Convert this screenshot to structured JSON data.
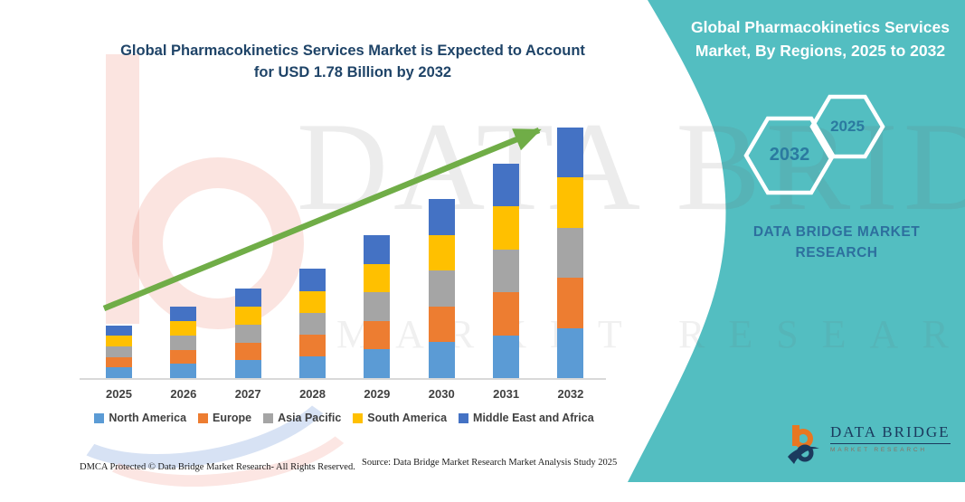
{
  "header": {
    "left_title_lines": [
      "Global Pharmacokinetics Services Market is Expected to Account",
      "for USD 1.78 Billion by 2032"
    ],
    "right_title_lines": [
      "Global Pharmacokinetics Services",
      "Market, By Regions, 2025 to 2032"
    ]
  },
  "side_panel": {
    "hexagon_back_label": "2032",
    "hexagon_front_label": "2025",
    "brand_caption_lines": [
      "DATA BRIDGE MARKET",
      "RESEARCH"
    ],
    "logo": {
      "name": "DATA BRIDGE",
      "tagline": "MARKET RESEARCH"
    }
  },
  "watermark": {
    "big_text": "DATA BRIDGE",
    "small_text": "MARKET RESEARCH"
  },
  "footer": {
    "dmca": "DMCA Protected © Data Bridge Market Research-  All Rights Reserved.",
    "source": "Source: Data Bridge Market Research  Market Analysis Study 2025"
  },
  "colors": {
    "teal_panel": "#53BEC1",
    "title_blue": "#1F4468",
    "hexagon_year_text": "#2B7AA0",
    "brand_caption_text": "#2D6F9E",
    "arrow_green": "#70AD47",
    "axis_text": "#404040",
    "logo_navy": "#1B3A5E",
    "logo_orange": "#E87722"
  },
  "chart_data": {
    "type": "bar",
    "stacked": true,
    "title": "Global Pharmacokinetics Services Market is Expected to Account for USD 1.78 Billion by 2032",
    "unit": "USD Billion",
    "xlabel": "",
    "ylabel": "",
    "grid": false,
    "legend_position": "bottom",
    "categories": [
      "2025",
      "2026",
      "2027",
      "2028",
      "2029",
      "2030",
      "2031",
      "2032"
    ],
    "series": [
      {
        "name": "North America",
        "color": "#5B9BD5",
        "values": [
          0.075,
          0.101,
          0.127,
          0.155,
          0.203,
          0.254,
          0.305,
          0.356
        ]
      },
      {
        "name": "Europe",
        "color": "#ED7D31",
        "values": [
          0.075,
          0.101,
          0.127,
          0.155,
          0.203,
          0.254,
          0.305,
          0.356
        ]
      },
      {
        "name": "Asia Pacific",
        "color": "#A5A5A5",
        "values": [
          0.075,
          0.101,
          0.127,
          0.155,
          0.203,
          0.254,
          0.305,
          0.356
        ]
      },
      {
        "name": "South America",
        "color": "#FFC000",
        "values": [
          0.075,
          0.101,
          0.127,
          0.155,
          0.203,
          0.254,
          0.305,
          0.356
        ]
      },
      {
        "name": "Middle East and Africa",
        "color": "#4472C4",
        "values": [
          0.075,
          0.101,
          0.127,
          0.155,
          0.203,
          0.254,
          0.305,
          0.356
        ]
      }
    ],
    "totals": [
      0.375,
      0.505,
      0.635,
      0.775,
      1.015,
      1.27,
      1.525,
      1.78
    ],
    "ylim": [
      0,
      1.9
    ],
    "annotation": "USD 1.78 Billion by 2032",
    "values_note": "Per-region values estimated from stacked bar heights; 2032 total anchored to USD 1.78 Billion shown in title."
  }
}
